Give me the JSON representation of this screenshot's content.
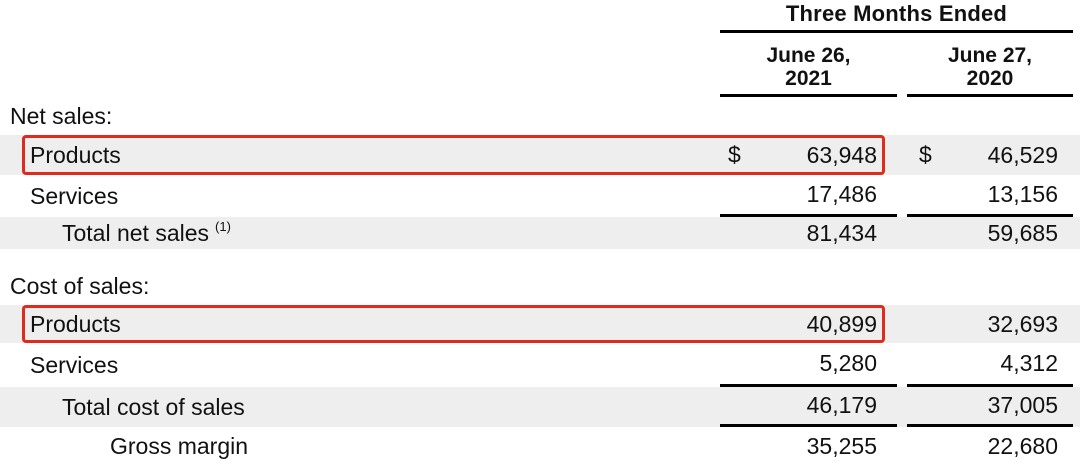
{
  "header": {
    "period": "Three Months Ended",
    "col2021": {
      "line1": "June 26,",
      "line2": "2021"
    },
    "col2020": {
      "line1": "June 27,",
      "line2": "2020"
    }
  },
  "rows": [
    {
      "label": "Net sales:"
    },
    {
      "label": "Products",
      "currency": "$",
      "v2021": "63,948",
      "v2020": "46,529",
      "highlighted": true
    },
    {
      "label": "Services",
      "v2021": "17,486",
      "v2020": "13,156"
    },
    {
      "label": "Total net sales",
      "footnote": "(1)",
      "v2021": "81,434",
      "v2020": "59,685"
    },
    {
      "label": "Cost of sales:"
    },
    {
      "label": "Products",
      "v2021": "40,899",
      "v2020": "32,693",
      "highlighted": true
    },
    {
      "label": "Services",
      "v2021": "5,280",
      "v2020": "4,312"
    },
    {
      "label": "Total cost of sales",
      "v2021": "46,179",
      "v2020": "37,005"
    },
    {
      "label": "Gross margin",
      "v2021": "35,255",
      "v2020": "22,680"
    }
  ],
  "annotations": {
    "highlight_color": "#de2b1d",
    "highlighted_rows": [
      "Net sales: Products",
      "Cost of sales: Products"
    ]
  },
  "colors": {
    "row_shade": "#eeeeee",
    "rule": "#000000",
    "text": "#111111"
  }
}
